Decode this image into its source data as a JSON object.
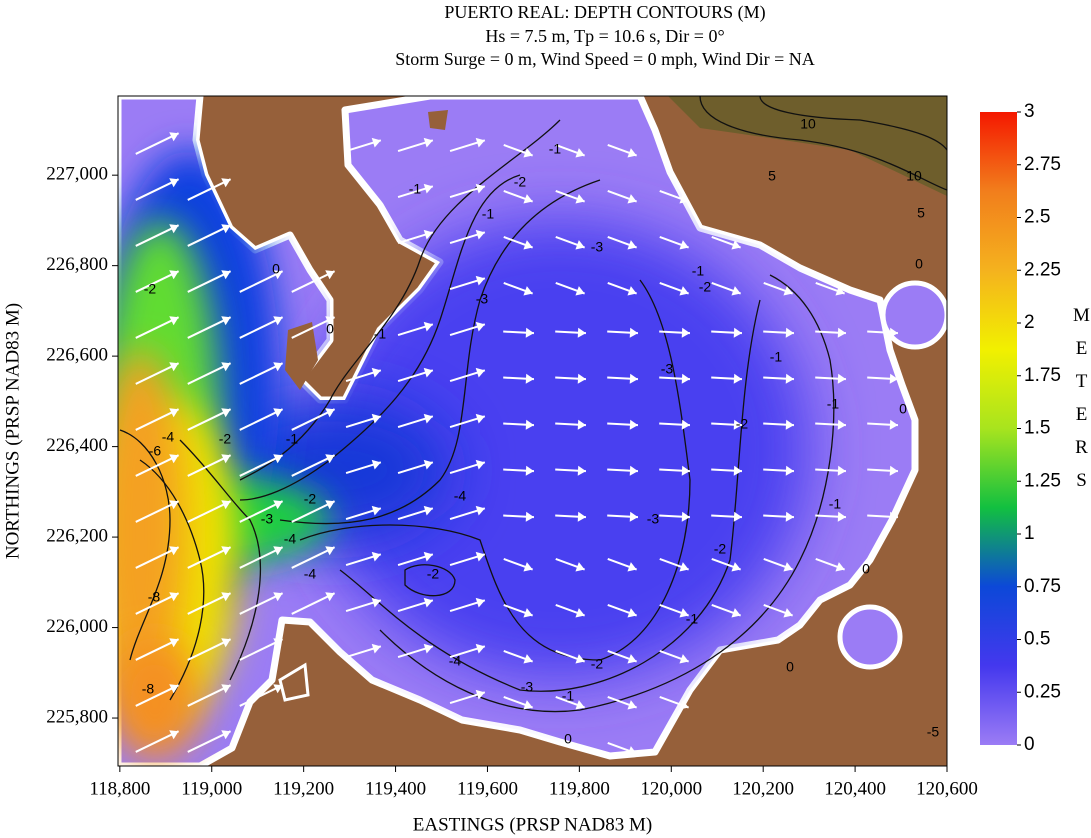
{
  "chart_data": {
    "type": "contour",
    "title": [
      "PUERTO REAL: DEPTH CONTOURS (M)",
      "Hs = 7.5 m, Tp = 10.6 s, Dir = 0°",
      "Storm Surge = 0 m, Wind Speed = 0 mph, Wind Dir = NA"
    ],
    "x_label": "EASTINGS (PRSP NAD83 M)",
    "y_label": "NORTHINGS (PRSP NAD83 M)",
    "xlim": [
      118796,
      120600
    ],
    "xticks": [
      {
        "value": 118800,
        "label": "118,800"
      },
      {
        "value": 119000,
        "label": "119,000"
      },
      {
        "value": 119200,
        "label": "119,200"
      },
      {
        "value": 119400,
        "label": "119,400"
      },
      {
        "value": 119600,
        "label": "119,600"
      },
      {
        "value": 119800,
        "label": "119,800"
      },
      {
        "value": 120000,
        "label": "120,000"
      },
      {
        "value": 120200,
        "label": "120,200"
      },
      {
        "value": 120400,
        "label": "120,400"
      },
      {
        "value": 120600,
        "label": "120,600"
      }
    ],
    "ylim": [
      225694,
      227175
    ],
    "yticks": [
      {
        "value": 225800,
        "label": "225,800"
      },
      {
        "value": 226000,
        "label": "226,000"
      },
      {
        "value": 226200,
        "label": "226,200"
      },
      {
        "value": 226400,
        "label": "226,400"
      },
      {
        "value": 226600,
        "label": "226,600"
      },
      {
        "value": 226800,
        "label": "226,800"
      },
      {
        "value": 227000,
        "label": "227,000"
      }
    ],
    "colorbar": {
      "label": "METERS",
      "lim": [
        0,
        3
      ],
      "ticks": [
        0,
        0.25,
        0.5,
        0.75,
        1,
        1.25,
        1.5,
        1.75,
        2,
        2.25,
        2.5,
        2.75,
        3
      ],
      "colors": [
        "#9b7cf5",
        "#4438ee",
        "#0c48d8",
        "#12c040",
        "#a8e41e",
        "#f2f000",
        "#f4b21e",
        "#f27e1c",
        "#f41800"
      ]
    },
    "contour_labels": [
      "-1",
      "-2",
      "-1",
      "-1",
      "-3",
      "-1",
      "-2",
      "0",
      "0",
      "-2",
      "-3",
      "-1",
      "-1",
      "-3",
      "-2",
      "-1",
      "0",
      "-1",
      "-6",
      "-4",
      "-2",
      "-3",
      "-4",
      "-2",
      "-4",
      "-3",
      "-2",
      "-1",
      "-4",
      "-2",
      "-8",
      "-1",
      "-4",
      "-3",
      "-2",
      "-1",
      "0",
      "0",
      "0",
      "-8",
      "10",
      "5",
      "10",
      "5",
      "0",
      "-5"
    ]
  }
}
